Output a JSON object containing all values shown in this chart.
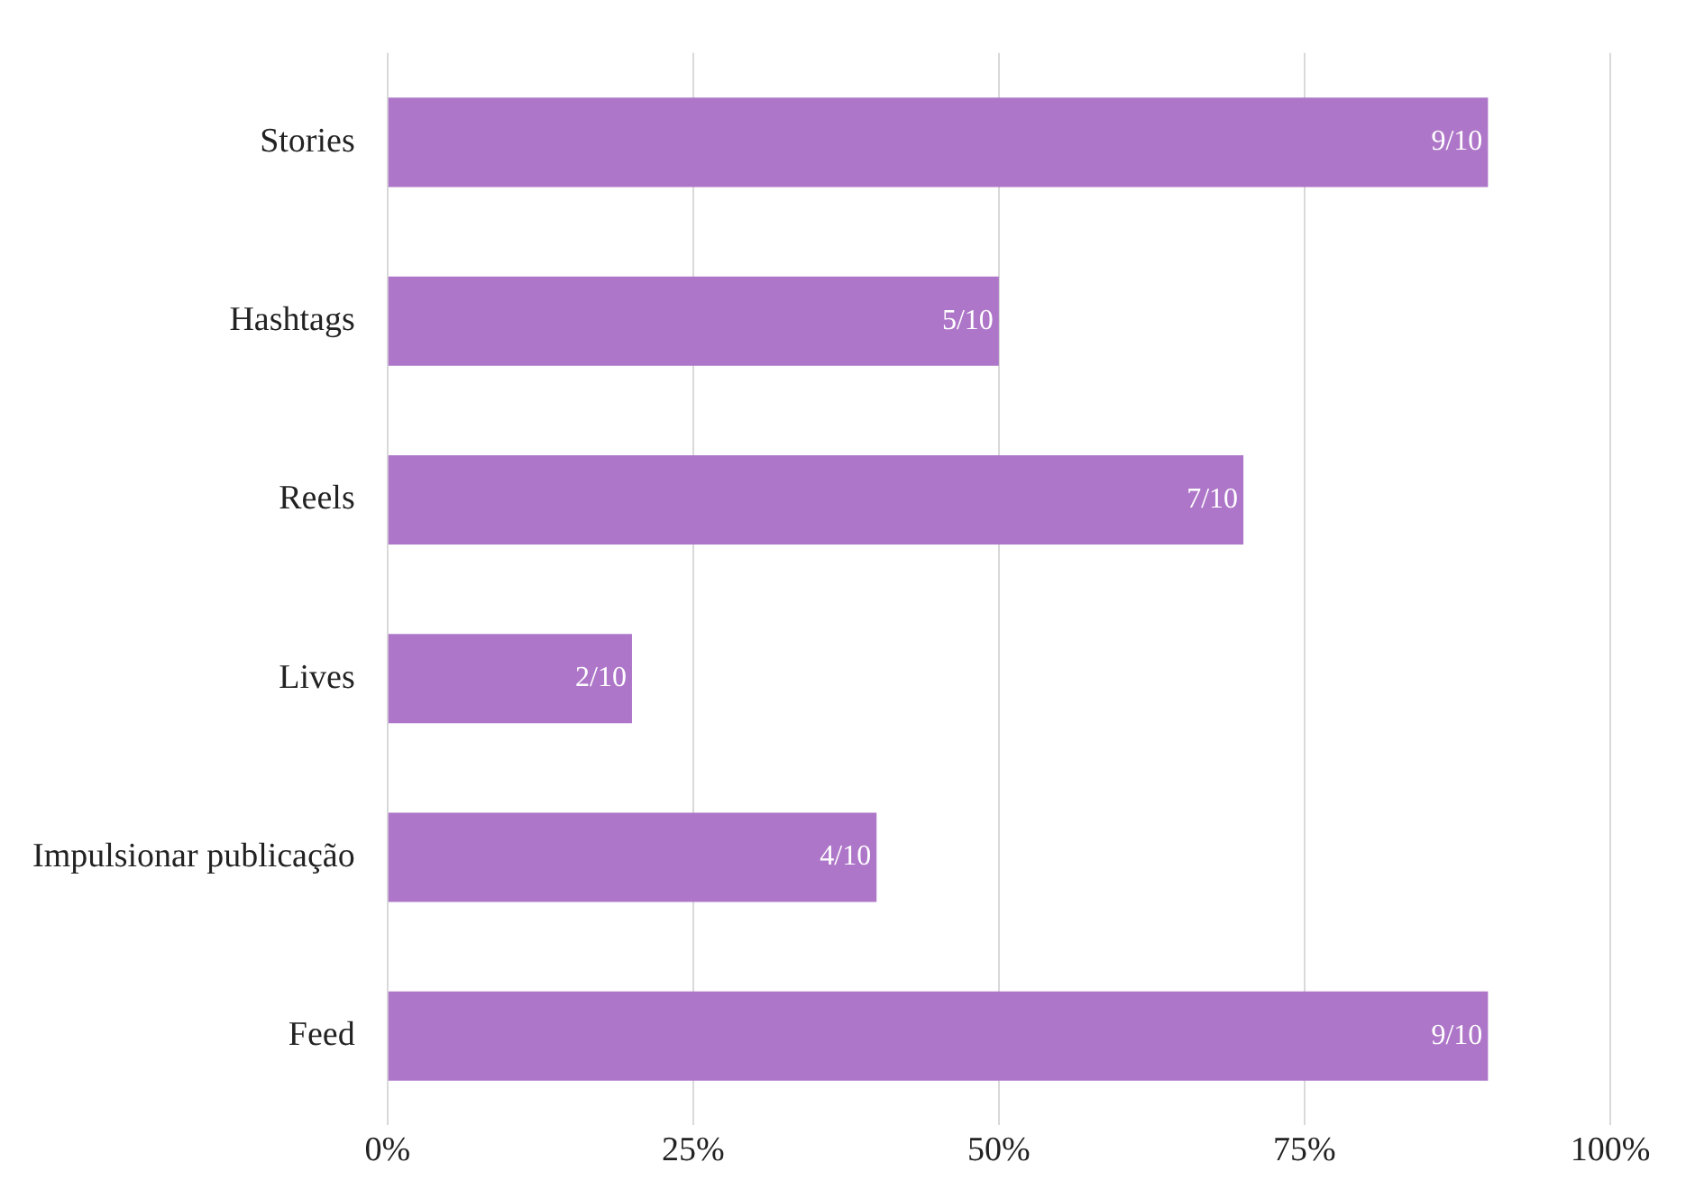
{
  "chart_data": {
    "type": "bar",
    "orientation": "horizontal",
    "categories": [
      "Stories",
      "Hashtags",
      "Reels",
      "Lives",
      "Impulsionar publicação",
      "Feed"
    ],
    "values": [
      0.9,
      0.5,
      0.7,
      0.2,
      0.4,
      0.9
    ],
    "value_labels": [
      "9/10",
      "5/10",
      "7/10",
      "2/10",
      "4/10",
      "9/10"
    ],
    "color": "#ae76c8",
    "xlim": [
      0,
      1
    ],
    "xticks": [
      {
        "value": 0,
        "label": "0%"
      },
      {
        "value": 0.25,
        "label": "25%"
      },
      {
        "value": 0.5,
        "label": "50%"
      },
      {
        "value": 0.75,
        "label": "75%"
      },
      {
        "value": 1,
        "label": "100%"
      }
    ],
    "grid": "x",
    "legend": false
  }
}
